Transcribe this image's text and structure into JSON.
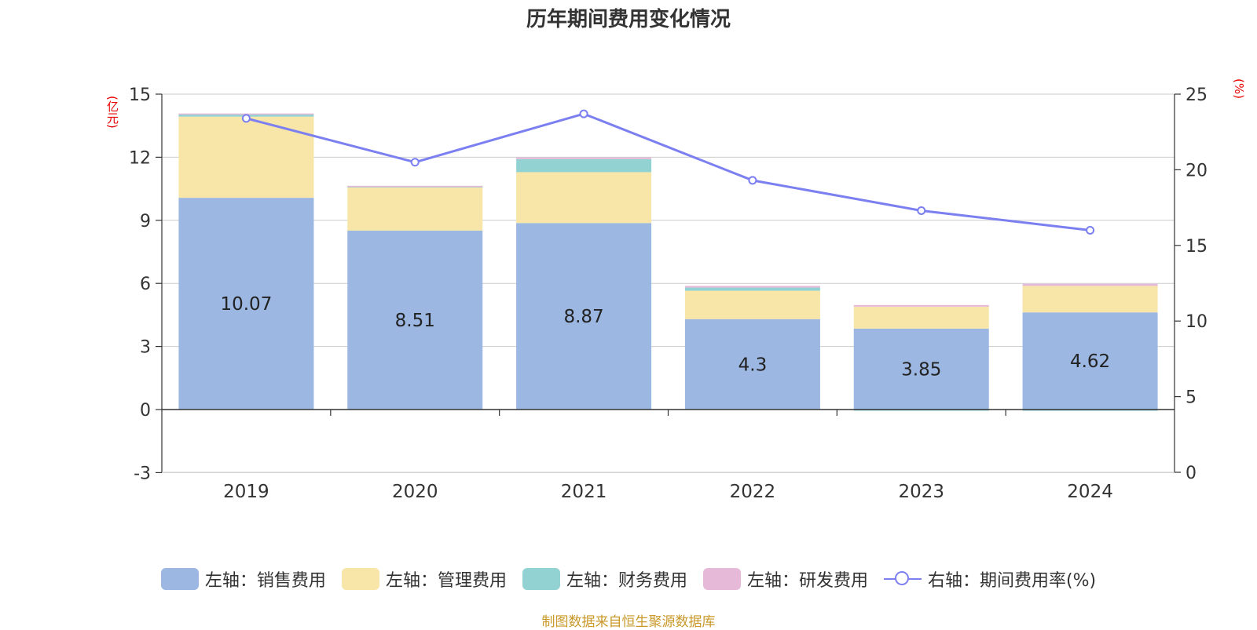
{
  "title": "历年期间费用变化情况",
  "left_axis_unit": "(亿元)",
  "right_axis_unit": "(%)",
  "source": "制图数据来自恒生聚源数据库",
  "colors": {
    "sales": "#9bb7e2",
    "admin": "#f7e6a8",
    "finance": "#93d2d2",
    "rd": "#e6b9d9",
    "rate": "#7b7ff0"
  },
  "legend": [
    {
      "label": "左轴：销售费用",
      "color": "#9bb7e2",
      "kind": "box"
    },
    {
      "label": "左轴：管理费用",
      "color": "#f7e6a8",
      "kind": "box"
    },
    {
      "label": "左轴：财务费用",
      "color": "#93d2d2",
      "kind": "box"
    },
    {
      "label": "左轴：研发费用",
      "color": "#e6b9d9",
      "kind": "box"
    },
    {
      "label": "右轴：期间费用率(%)",
      "color": "#7b7ff0",
      "kind": "line"
    }
  ],
  "chart_data": {
    "type": "bar",
    "stacked": true,
    "categories": [
      "2019",
      "2020",
      "2021",
      "2022",
      "2023",
      "2024"
    ],
    "series": [
      {
        "name": "左轴：销售费用",
        "key": "sales",
        "axis": "left",
        "values": [
          10.07,
          8.51,
          8.87,
          4.3,
          3.85,
          4.62
        ],
        "labels": [
          "10.07",
          "8.51",
          "8.87",
          "4.3",
          "3.85",
          "4.62"
        ]
      },
      {
        "name": "左轴：管理费用",
        "key": "admin",
        "axis": "left",
        "values": [
          3.86,
          2.05,
          2.42,
          1.35,
          1.04,
          1.26
        ]
      },
      {
        "name": "左轴：财务费用",
        "key": "finance",
        "axis": "left",
        "values": [
          0.13,
          0.06,
          0.62,
          0.15,
          -0.04,
          -0.06
        ]
      },
      {
        "name": "左轴：研发费用",
        "key": "rd",
        "axis": "left",
        "values": [
          0.02,
          0.02,
          0.08,
          0.08,
          0.08,
          0.1
        ]
      },
      {
        "name": "右轴：期间费用率(%)",
        "key": "rate",
        "axis": "right",
        "type": "line",
        "values": [
          23.4,
          20.5,
          23.7,
          19.3,
          17.3,
          16.0
        ]
      }
    ],
    "left_axis": {
      "min": -3,
      "max": 15,
      "ticks": [
        "-3",
        "0",
        "3",
        "6",
        "9",
        "12",
        "15"
      ]
    },
    "right_axis": {
      "min": 0,
      "max": 25,
      "ticks": [
        "0",
        "5",
        "10",
        "15",
        "20",
        "25"
      ]
    },
    "xlabel": "",
    "grid": true,
    "legend_position": "bottom"
  }
}
